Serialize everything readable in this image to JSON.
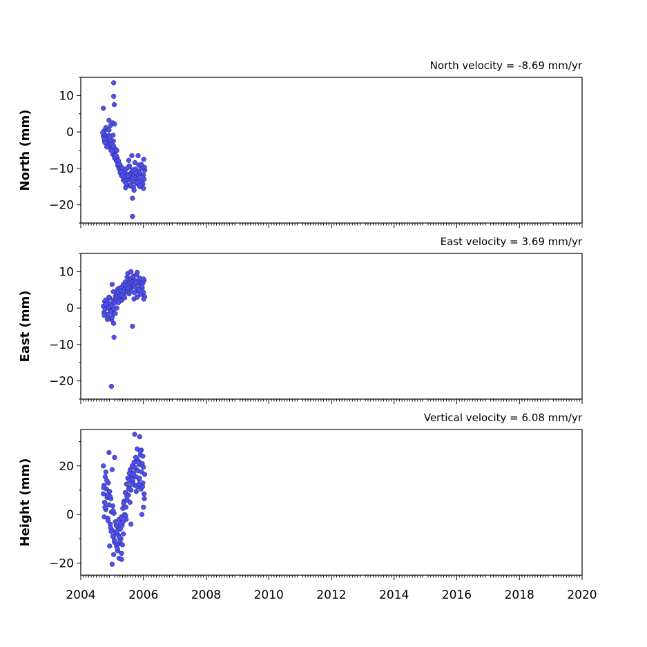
{
  "chart_data": [
    {
      "type": "scatter",
      "title": "North velocity = -8.69 mm/yr",
      "ylabel": "North (mm)",
      "xlim": [
        2004,
        2020
      ],
      "ylim": [
        -25,
        15
      ],
      "yticks": [
        10,
        0,
        -10,
        -20
      ],
      "ytick_labels": [
        "10",
        "0",
        "−10",
        "−20"
      ],
      "point_color": "#4f4ff0",
      "series": [
        {
          "x": [
            2004.72,
            2004.74,
            2004.76,
            2004.78,
            2004.8,
            2004.82,
            2004.84,
            2004.86,
            2004.88,
            2004.9,
            2004.92,
            2004.94,
            2004.96,
            2004.98,
            2005.0,
            2005.02,
            2005.04,
            2005.06,
            2005.08,
            2005.1,
            2005.12,
            2005.14,
            2005.16,
            2005.18,
            2005.2,
            2005.22,
            2005.24,
            2005.26,
            2005.28,
            2005.3,
            2005.32,
            2005.34,
            2005.36,
            2005.38,
            2005.4,
            2005.42,
            2005.44,
            2005.46,
            2005.48,
            2005.5,
            2005.52,
            2005.54,
            2005.56,
            2005.58,
            2005.6,
            2005.62,
            2005.64,
            2005.66,
            2005.68,
            2005.7,
            2005.72,
            2005.74,
            2005.76,
            2005.78,
            2005.8,
            2005.82,
            2005.84,
            2005.86,
            2005.88,
            2005.9,
            2005.92,
            2005.94,
            2005.96,
            2005.98,
            2006.0,
            2006.02,
            2006.04,
            2004.7,
            2004.75,
            2004.8,
            2004.85,
            2004.9,
            2004.95,
            2005.0,
            2005.05,
            2005.1,
            2005.15,
            2005.2,
            2005.25,
            2005.3,
            2005.35,
            2005.4,
            2005.45,
            2005.5,
            2005.55,
            2005.6,
            2005.65,
            2005.7,
            2005.75,
            2005.8,
            2005.85,
            2005.9,
            2005.95,
            2006.0,
            2006.03,
            2004.77,
            2004.83,
            2004.93,
            2005.03,
            2005.13,
            2005.23,
            2005.33,
            2005.43,
            2005.53,
            2005.63,
            2005.73,
            2005.83,
            2005.93,
            2006.01,
            2004.72,
            2005.05,
            2005.05,
            2005.07,
            2005.65,
            2005.65,
            2004.9,
            2004.95,
            2005.02,
            2005.08,
            2005.5
          ],
          "y": [
            -1.2,
            0.3,
            -2.5,
            -0.8,
            -3.1,
            -1.5,
            0.8,
            -2.2,
            -3.8,
            -1.0,
            -4.2,
            -2.8,
            -5.0,
            -3.3,
            -4.5,
            -6.1,
            -2.5,
            -5.5,
            -7.2,
            -6.3,
            -4.8,
            -8.0,
            -7.1,
            -9.2,
            -8.5,
            -10.1,
            -9.4,
            -11.2,
            -10.5,
            -12.0,
            -9.8,
            -11.5,
            -13.2,
            -12.4,
            -11.0,
            -13.8,
            -10.3,
            -12.8,
            -14.5,
            -11.7,
            -13.1,
            -9.5,
            -12.2,
            -14.8,
            -11.3,
            -13.5,
            -10.8,
            -12.6,
            -15.2,
            -11.9,
            -13.7,
            -10.2,
            -12.4,
            -14.1,
            -11.6,
            -13.3,
            -10.7,
            -12.9,
            -15.0,
            -11.4,
            -13.6,
            -9.9,
            -12.1,
            -14.3,
            -11.8,
            -13.0,
            -10.5,
            -0.2,
            -1.9,
            1.2,
            -3.5,
            0.5,
            -2.1,
            -5.3,
            -3.9,
            -6.8,
            -5.1,
            -7.9,
            -9.0,
            -10.9,
            -12.3,
            -13.5,
            -14.2,
            -12.1,
            -9.3,
            -14.6,
            -10.4,
            -16.0,
            -11.1,
            -13.9,
            -9.1,
            -14.7,
            -12.5,
            -15.5,
            -9.7,
            -2.9,
            -4.1,
            -1.4,
            -0.9,
            -6.5,
            -8.8,
            -11.8,
            -15.3,
            -7.8,
            -6.5,
            -8.4,
            -6.5,
            -8.9,
            -7.5,
            6.5,
            13.5,
            9.8,
            7.5,
            -18.2,
            -23.2,
            3.2,
            1.8,
            2.5,
            2.2,
            -9.8
          ],
          "values_approximate": true
        }
      ]
    },
    {
      "type": "scatter",
      "title": "East velocity = 3.69 mm/yr",
      "ylabel": "East (mm)",
      "xlim": [
        2004,
        2020
      ],
      "ylim": [
        -25,
        15
      ],
      "yticks": [
        10,
        0,
        -10,
        -20
      ],
      "ytick_labels": [
        "10",
        "0",
        "−10",
        "−20"
      ],
      "point_color": "#4f4ff0",
      "series": [
        {
          "x": [
            2004.72,
            2004.74,
            2004.76,
            2004.78,
            2004.8,
            2004.82,
            2004.84,
            2004.86,
            2004.88,
            2004.9,
            2004.92,
            2004.94,
            2004.96,
            2004.98,
            2005.0,
            2005.02,
            2005.04,
            2005.06,
            2005.08,
            2005.1,
            2005.12,
            2005.14,
            2005.16,
            2005.18,
            2005.2,
            2005.22,
            2005.24,
            2005.26,
            2005.28,
            2005.3,
            2005.32,
            2005.34,
            2005.36,
            2005.38,
            2005.4,
            2005.42,
            2005.44,
            2005.46,
            2005.48,
            2005.5,
            2005.52,
            2005.54,
            2005.56,
            2005.58,
            2005.6,
            2005.62,
            2005.64,
            2005.66,
            2005.68,
            2005.7,
            2005.72,
            2005.74,
            2005.76,
            2005.78,
            2005.8,
            2005.82,
            2005.84,
            2005.86,
            2005.88,
            2005.9,
            2005.92,
            2005.94,
            2005.96,
            2005.98,
            2006.0,
            2006.02,
            2006.04,
            2004.75,
            2004.85,
            2004.95,
            2005.05,
            2005.15,
            2005.25,
            2005.35,
            2005.45,
            2005.55,
            2005.65,
            2005.75,
            2005.85,
            2005.95,
            2006.01,
            2004.8,
            2004.9,
            2005.0,
            2005.1,
            2005.2,
            2005.3,
            2005.4,
            2005.5,
            2005.6,
            2005.7,
            2005.8,
            2005.9,
            2006.0,
            2005.0,
            2005.06,
            2005.65,
            2005.5,
            2005.8,
            2004.98,
            2005.04
          ],
          "y": [
            0.5,
            -1.2,
            1.8,
            -0.3,
            2.2,
            0.9,
            -1.8,
            1.5,
            -2.5,
            0.2,
            2.8,
            -0.7,
            1.1,
            -3.2,
            0.6,
            -1.5,
            2.0,
            -0.2,
            1.4,
            3.2,
            2.5,
            4.1,
            3.0,
            5.2,
            4.4,
            2.8,
            5.5,
            3.6,
            4.9,
            2.1,
            5.8,
            4.0,
            6.5,
            3.3,
            5.1,
            7.2,
            4.5,
            6.0,
            8.5,
            5.4,
            7.8,
            3.9,
            6.7,
            5.2,
            8.0,
            4.6,
            7.1,
            5.9,
            8.8,
            6.3,
            4.2,
            7.5,
            5.6,
            9.1,
            6.9,
            4.8,
            7.3,
            5.1,
            8.2,
            6.4,
            3.8,
            7.0,
            5.5,
            6.8,
            4.3,
            7.6,
            3.1,
            -2.0,
            -3.1,
            -1.0,
            -4.2,
            0.0,
            2.0,
            4.5,
            6.2,
            5.8,
            8.5,
            7.0,
            5.0,
            6.0,
            2.5,
            1.0,
            3.0,
            -2.5,
            -1.5,
            1.5,
            3.5,
            2.8,
            9.5,
            10.0,
            2.5,
            9.8,
            3.8,
            8.0,
            6.5,
            -8.0,
            -5.0,
            5.5,
            3.0,
            -21.5,
            4.5
          ],
          "values_approximate": true
        }
      ]
    },
    {
      "type": "scatter",
      "title": "Vertical velocity = 6.08 mm/yr",
      "ylabel": "Height (mm)",
      "xlim": [
        2004,
        2020
      ],
      "ylim": [
        -25,
        35
      ],
      "yticks": [
        20,
        0,
        -20
      ],
      "ytick_labels": [
        "20",
        "0",
        "−20"
      ],
      "point_color": "#4f4ff0",
      "series": [
        {
          "x": [
            2004.72,
            2004.74,
            2004.76,
            2004.78,
            2004.8,
            2004.82,
            2004.84,
            2004.86,
            2004.88,
            2004.9,
            2004.92,
            2004.94,
            2004.96,
            2004.98,
            2005.0,
            2005.02,
            2005.04,
            2005.06,
            2005.08,
            2005.1,
            2005.12,
            2005.14,
            2005.16,
            2005.18,
            2005.2,
            2005.22,
            2005.24,
            2005.26,
            2005.28,
            2005.3,
            2005.32,
            2005.34,
            2005.36,
            2005.38,
            2005.4,
            2005.42,
            2005.44,
            2005.46,
            2005.48,
            2005.5,
            2005.52,
            2005.54,
            2005.56,
            2005.58,
            2005.6,
            2005.62,
            2005.64,
            2005.66,
            2005.68,
            2005.7,
            2005.72,
            2005.74,
            2005.76,
            2005.78,
            2005.8,
            2005.82,
            2005.84,
            2005.86,
            2005.88,
            2005.9,
            2005.92,
            2005.94,
            2005.96,
            2005.98,
            2006.0,
            2006.02,
            2006.04,
            2004.73,
            2004.77,
            2004.83,
            2004.87,
            2004.93,
            2004.97,
            2005.03,
            2005.07,
            2005.13,
            2005.17,
            2005.23,
            2005.27,
            2005.33,
            2005.37,
            2005.43,
            2005.47,
            2005.53,
            2005.57,
            2005.63,
            2005.67,
            2005.73,
            2005.77,
            2005.83,
            2005.87,
            2005.93,
            2005.97,
            2006.03,
            2004.75,
            2004.85,
            2004.95,
            2005.05,
            2005.15,
            2005.25,
            2005.35,
            2005.45,
            2005.55,
            2005.65,
            2005.75,
            2005.85,
            2005.95,
            2004.72,
            2004.8,
            2004.9,
            2005.0,
            2005.0,
            2005.08,
            2005.22,
            2005.3,
            2005.72,
            2005.8,
            2005.88,
            2005.9,
            2005.98,
            2006.0,
            2005.3,
            2005.6,
            2004.92,
            2005.02
          ],
          "y": [
            8.5,
            12.0,
            5.0,
            15.5,
            2.0,
            10.5,
            7.0,
            -1.5,
            13.0,
            4.0,
            9.5,
            -4.0,
            6.5,
            1.0,
            -6.5,
            3.5,
            -9.0,
            0.5,
            -11.5,
            -3.0,
            -7.5,
            -13.0,
            -5.0,
            -15.0,
            -8.5,
            -2.0,
            -12.0,
            -6.0,
            -10.0,
            -1.0,
            -4.5,
            2.5,
            -8.0,
            5.5,
            0.0,
            9.0,
            3.0,
            12.5,
            6.0,
            15.0,
            8.0,
            11.0,
            14.0,
            18.5,
            10.0,
            16.0,
            20.0,
            13.5,
            17.0,
            21.5,
            12.0,
            19.0,
            15.5,
            23.0,
            11.5,
            18.0,
            22.0,
            14.5,
            20.5,
            24.5,
            10.5,
            17.5,
            21.0,
            13.0,
            19.5,
            8.5,
            16.5,
            11.0,
            3.0,
            14.0,
            -2.5,
            7.5,
            -7.0,
            1.5,
            -10.5,
            -4.5,
            -14.0,
            -9.5,
            -3.5,
            -12.5,
            4.5,
            -0.5,
            7.5,
            10.5,
            5.0,
            12.5,
            16.5,
            19.5,
            9.5,
            21.5,
            15.0,
            26.5,
            11.5,
            6.5,
            -1.0,
            8.0,
            -5.5,
            -16.5,
            -7.0,
            -11.0,
            -3.0,
            -2.0,
            17.0,
            14.5,
            23.5,
            12.5,
            0.0,
            20.0,
            17.5,
            25.5,
            18.5,
            -20.5,
            23.5,
            -18.0,
            -16.0,
            33.0,
            27.0,
            32.0,
            26.0,
            24.0,
            3.0,
            -18.5,
            -4.0,
            -13.0,
            -9.0
          ],
          "values_approximate": true
        }
      ]
    }
  ],
  "x_axis": {
    "ticks": [
      2004,
      2006,
      2008,
      2010,
      2012,
      2014,
      2016,
      2018,
      2020
    ],
    "tick_labels": [
      "2004",
      "2006",
      "2008",
      "2010",
      "2012",
      "2014",
      "2016",
      "2018",
      "2020"
    ]
  }
}
